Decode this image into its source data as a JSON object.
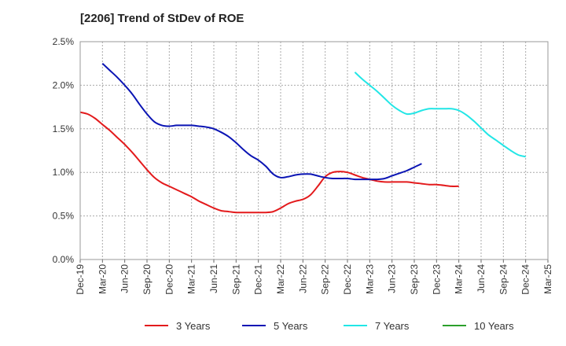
{
  "chart_data": {
    "type": "line",
    "title": "[2206]  Trend of StDev of ROE",
    "xlabel": "",
    "ylabel": "",
    "x_ticks": [
      "Dec-19",
      "Mar-20",
      "Jun-20",
      "Sep-20",
      "Dec-20",
      "Mar-21",
      "Jun-21",
      "Sep-21",
      "Dec-21",
      "Mar-22",
      "Jun-22",
      "Sep-22",
      "Dec-22",
      "Mar-23",
      "Jun-23",
      "Sep-23",
      "Dec-23",
      "Mar-24",
      "Jun-24",
      "Sep-24",
      "Dec-24",
      "Mar-25"
    ],
    "y_ticks": [
      "0.0%",
      "0.5%",
      "1.0%",
      "1.5%",
      "2.0%",
      "2.5%"
    ],
    "ylim": [
      0,
      2.5
    ],
    "y_unit": "%",
    "grid": true,
    "legend_position": "bottom",
    "series": [
      {
        "name": "3 Years",
        "color": "#e31a1c",
        "values": [
          1.69,
          1.67,
          1.62,
          1.55,
          1.48,
          1.4,
          1.32,
          1.23,
          1.13,
          1.03,
          0.94,
          0.88,
          0.84,
          0.8,
          0.76,
          0.72,
          0.67,
          0.63,
          0.59,
          0.56,
          0.55,
          0.54,
          0.54,
          0.54,
          0.54,
          0.54,
          0.55,
          0.59,
          0.64,
          0.67,
          0.69,
          0.74,
          0.84,
          0.95,
          1.0,
          1.01,
          1.0,
          0.97,
          0.94,
          0.92,
          0.9,
          0.89,
          0.89,
          0.89,
          0.89,
          0.88,
          0.87,
          0.86,
          0.86,
          0.85,
          0.84,
          0.84
        ]
      },
      {
        "name": "5 Years",
        "color": "#0a14b4",
        "values": [
          null,
          null,
          null,
          2.25,
          2.17,
          2.09,
          2.0,
          1.9,
          1.78,
          1.67,
          1.58,
          1.54,
          1.53,
          1.54,
          1.54,
          1.54,
          1.53,
          1.52,
          1.5,
          1.46,
          1.41,
          1.34,
          1.26,
          1.19,
          1.14,
          1.07,
          0.98,
          0.94,
          0.95,
          0.97,
          0.98,
          0.98,
          0.96,
          0.94,
          0.93,
          0.93,
          0.93,
          0.92,
          0.92,
          0.92,
          0.92,
          0.93,
          0.96,
          0.99,
          1.02,
          1.06,
          1.1
        ]
      },
      {
        "name": "7 Years",
        "color": "#22e6e6",
        "values": [
          null,
          null,
          null,
          null,
          null,
          null,
          null,
          null,
          null,
          null,
          null,
          null,
          null,
          null,
          null,
          null,
          null,
          null,
          null,
          null,
          null,
          null,
          null,
          null,
          null,
          null,
          null,
          null,
          null,
          null,
          null,
          null,
          null,
          null,
          null,
          null,
          null,
          2.15,
          2.07,
          2.0,
          1.93,
          1.85,
          1.77,
          1.71,
          1.67,
          1.68,
          1.71,
          1.73,
          1.73,
          1.73,
          1.73,
          1.71,
          1.66,
          1.59,
          1.51,
          1.43,
          1.37,
          1.31,
          1.25,
          1.2,
          1.18
        ]
      },
      {
        "name": "10 Years",
        "color": "#2ca02c",
        "values": []
      }
    ]
  }
}
